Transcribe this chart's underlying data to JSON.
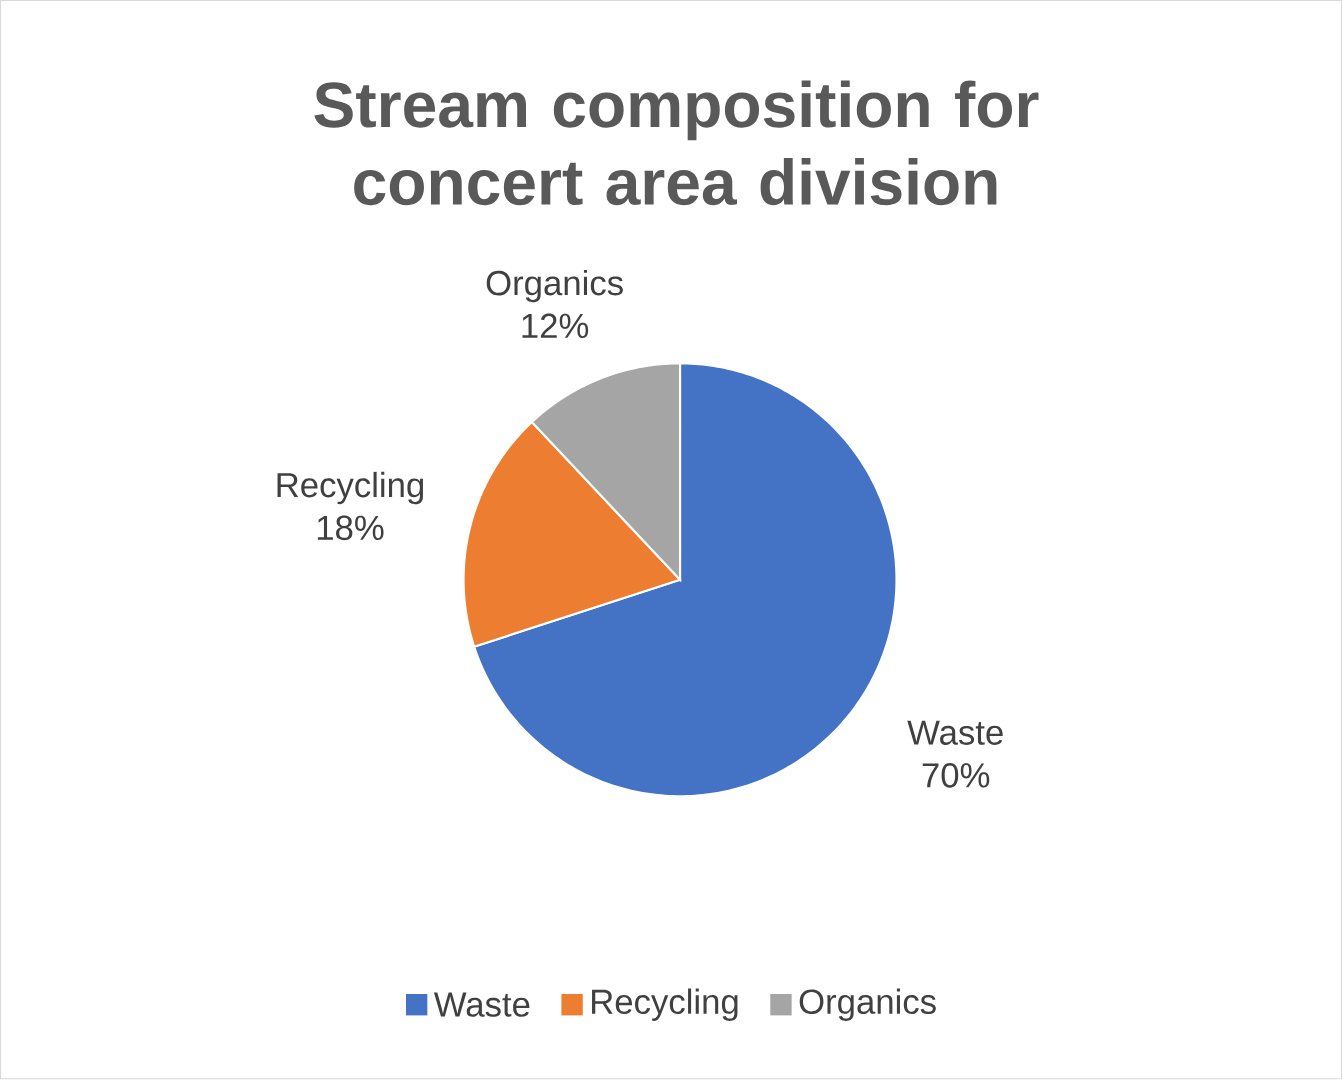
{
  "chart_data": {
    "type": "pie",
    "title": "Stream composition for concert area division",
    "categories": [
      "Waste",
      "Recycling",
      "Organics"
    ],
    "values": [
      70,
      18,
      12
    ],
    "value_labels": [
      "70%",
      "18%",
      "12%"
    ],
    "colors": [
      "#4472c4",
      "#ed7d31",
      "#a5a5a5"
    ],
    "legend": "bottom"
  }
}
